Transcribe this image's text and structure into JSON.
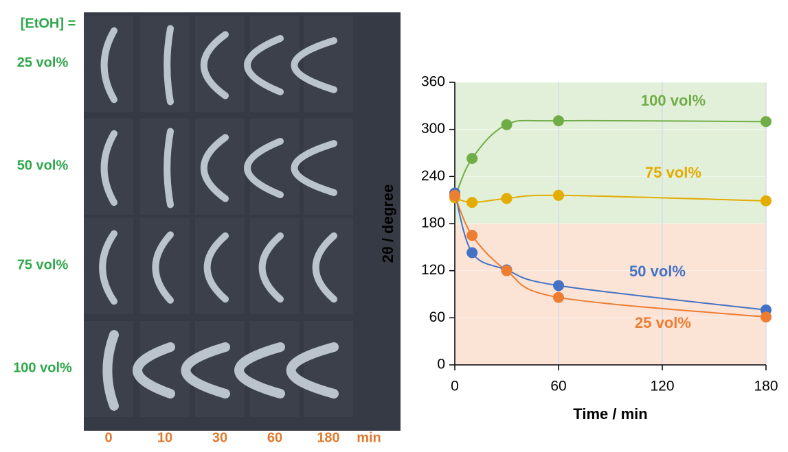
{
  "photo_panel": {
    "heading": "[EtOH] =",
    "rows": [
      "25 vol%",
      "50 vol%",
      "75 vol%",
      "100 vol%"
    ],
    "columns": [
      "0",
      "10",
      "30",
      "60",
      "180"
    ],
    "column_unit": "min"
  },
  "chart_data": {
    "type": "line",
    "x_label": "Time / min",
    "y_label": "2θ / degree",
    "x": [
      0,
      10,
      30,
      60,
      180
    ],
    "xlim": [
      0,
      180
    ],
    "xticks": [
      0,
      60,
      120,
      180
    ],
    "ylim": [
      0,
      360
    ],
    "yticks": [
      0,
      60,
      120,
      180,
      240,
      300,
      360
    ],
    "grid": true,
    "shaded_regions": [
      {
        "from": 180,
        "to": 360,
        "color": "#e3f0d9"
      },
      {
        "from": 0,
        "to": 180,
        "color": "#fbe3d6"
      }
    ],
    "series": [
      {
        "name": "100 vol%",
        "color": "#70ad47",
        "values": [
          213,
          263,
          306,
          311,
          310
        ]
      },
      {
        "name": "75 vol%",
        "color": "#e2ac00",
        "values": [
          213,
          207,
          212,
          216,
          209
        ]
      },
      {
        "name": "50 vol%",
        "color": "#4472c4",
        "values": [
          219,
          143,
          121,
          101,
          70
        ]
      },
      {
        "name": "25 vol%",
        "color": "#ed7d31",
        "values": [
          216,
          165,
          120,
          86,
          61
        ]
      }
    ]
  }
}
